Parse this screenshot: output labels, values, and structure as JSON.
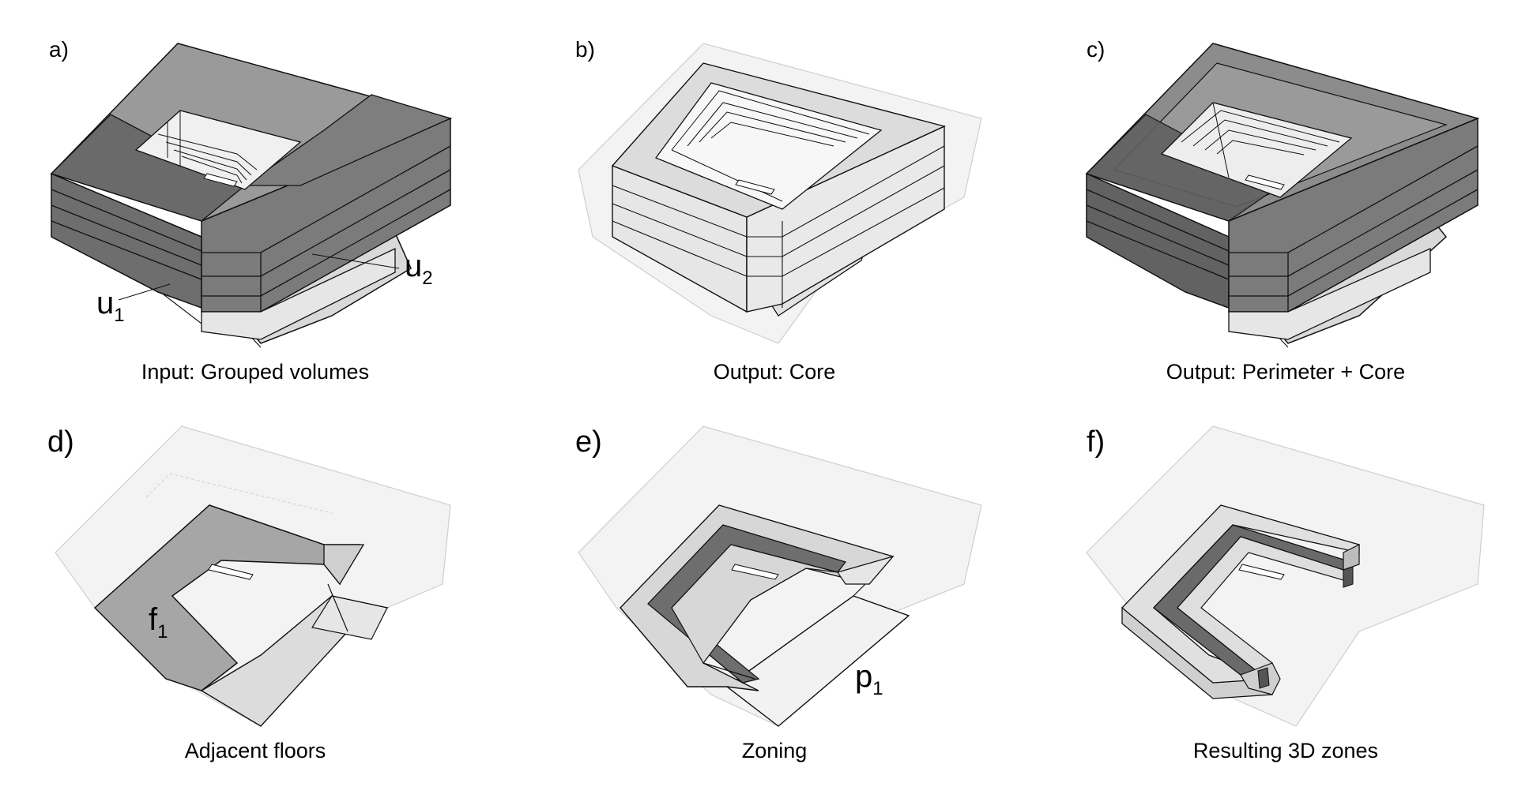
{
  "panels": [
    {
      "id": "a",
      "label": "a)",
      "caption": "Input: Grouped volumes"
    },
    {
      "id": "b",
      "label": "b)",
      "caption": "Output: Core"
    },
    {
      "id": "c",
      "label": "c)",
      "caption": "Output: Perimeter + Core"
    },
    {
      "id": "d",
      "label": "d)",
      "caption": "Adjacent floors"
    },
    {
      "id": "e",
      "label": "e)",
      "caption": "Zoning"
    },
    {
      "id": "f",
      "label": "f)",
      "caption": "Resulting 3D zones"
    }
  ],
  "annotations": {
    "u1": {
      "base": "u",
      "sub": "1"
    },
    "u2": {
      "base": "u",
      "sub": "2"
    },
    "f1": {
      "base": "f",
      "sub": "1"
    },
    "p1": {
      "base": "p",
      "sub": "1"
    }
  },
  "colors": {
    "dark": "#6e6e6e",
    "darker": "#5e5e5e",
    "mid": "#8a8a8a",
    "medium": "#a6a6a6",
    "light": "#d9d9d9",
    "lighter": "#e6e6e6",
    "ghost": "#f3f3f3",
    "ghost_stroke": "#cfcfcf",
    "stroke": "#111111"
  }
}
